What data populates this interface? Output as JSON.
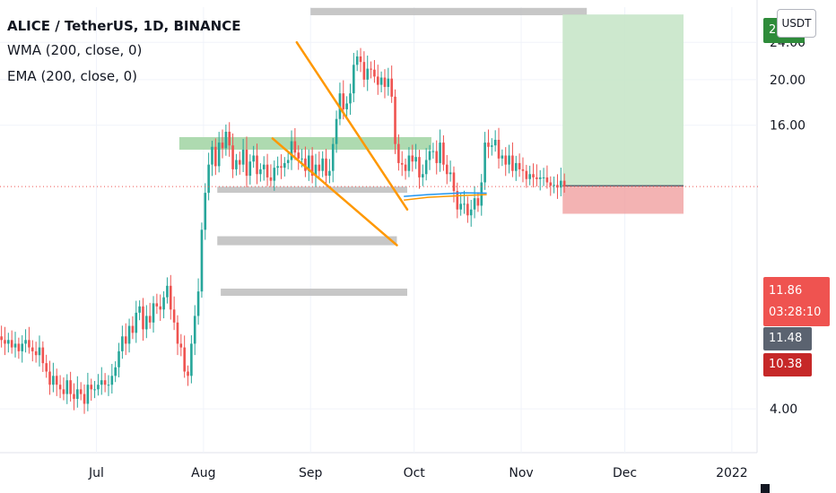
{
  "header": {
    "symbol_line": "ALICE / TetherUS, 1D, BINANCE",
    "indicators": [
      "WMA (200, close, 0)",
      "EMA (200, close, 0)"
    ]
  },
  "price_scale": {
    "unit_button": "USDT",
    "tick_labels": [
      "24.00",
      "20.00",
      "16.00",
      "4.00"
    ],
    "tags": {
      "target_label": "2",
      "last_price": "11.86",
      "countdown": "03:28:10",
      "ma_value": "11.48",
      "stop_value": "10.38"
    }
  },
  "time_scale": {
    "labels": [
      "Jul",
      "Aug",
      "Sep",
      "Oct",
      "Nov",
      "Dec",
      "2022"
    ]
  },
  "colors": {
    "up": "#26a69a",
    "down": "#ef5350",
    "trendline": "#ff9800",
    "resistance_zone": "#a5d6a7",
    "support_zone": "#bdbdbd",
    "wma": "#2196f3",
    "ema": "#ff9800",
    "profit_zone": "#c8e6c9",
    "loss_zone": "#ef9a9a"
  },
  "chart_data": {
    "type": "candlestick",
    "scale": "log",
    "ylim": [
      3.3,
      28.5
    ],
    "x_start": "2021-06-01",
    "days": 172,
    "ticks": [
      {
        "label": "24.00",
        "value": 24
      },
      {
        "label": "20.00",
        "value": 20
      },
      {
        "label": "16.00",
        "value": 16
      },
      {
        "label": "4.00",
        "value": 4
      }
    ],
    "month_ticks": [
      {
        "label": "Jul",
        "date": "2021-07-01"
      },
      {
        "label": "Aug",
        "date": "2021-08-01"
      },
      {
        "label": "Sep",
        "date": "2021-09-01"
      },
      {
        "label": "Oct",
        "date": "2021-10-01"
      },
      {
        "label": "Nov",
        "date": "2021-11-01"
      },
      {
        "label": "Dec",
        "date": "2021-12-01"
      },
      {
        "label": "2022",
        "date": "2022-01-01"
      }
    ],
    "closes": [
      5.8,
      5.7,
      5.6,
      5.5,
      5.6,
      5.4,
      5.5,
      5.3,
      5.5,
      5.6,
      5.4,
      5.3,
      5.2,
      5.4,
      5.0,
      4.8,
      4.5,
      4.7,
      4.5,
      4.4,
      4.3,
      4.6,
      4.3,
      4.2,
      4.4,
      4.3,
      4.1,
      4.5,
      4.4,
      4.4,
      4.5,
      4.6,
      4.5,
      4.5,
      4.7,
      4.9,
      5.3,
      5.7,
      5.5,
      6.0,
      5.8,
      6.4,
      6.6,
      5.9,
      6.3,
      6.1,
      6.7,
      6.6,
      6.5,
      6.9,
      7.3,
      6.5,
      6.1,
      5.5,
      5.4,
      4.8,
      4.7,
      5.5,
      6.3,
      7.1,
      9.6,
      11.5,
      13.2,
      14.4,
      13.1,
      14.7,
      14.3,
      15.5,
      14.5,
      12.9,
      13.5,
      13.2,
      14.2,
      12.5,
      13.4,
      13.8,
      12.6,
      12.9,
      13.2,
      12.4,
      12.2,
      13.0,
      13.1,
      13.0,
      13.3,
      13.5,
      14.8,
      14.0,
      13.6,
      13.6,
      12.8,
      13.8,
      12.5,
      13.2,
      12.8,
      13.6,
      12.5,
      12.8,
      14.6,
      16.5,
      18.7,
      17.3,
      17.8,
      18.7,
      21.5,
      22.4,
      21.8,
      20.0,
      21.1,
      21.0,
      20.3,
      19.5,
      20.2,
      19.3,
      20.1,
      18.4,
      14.6,
      13.3,
      13.2,
      12.8,
      13.8,
      13.4,
      13.7,
      12.4,
      12.6,
      13.5,
      14.1,
      14.1,
      13.3,
      14.7,
      13.2,
      12.6,
      12.7,
      11.6,
      10.6,
      10.9,
      10.9,
      10.3,
      10.6,
      11.2,
      10.8,
      12.1,
      14.7,
      14.4,
      14.5,
      14.9,
      13.6,
      13.8,
      13.2,
      13.8,
      12.8,
      13.3,
      12.9,
      12.8,
      12.3,
      12.6,
      12.4,
      12.3,
      12.4,
      12.4,
      12.1,
      11.9,
      11.95,
      11.8,
      12.2,
      11.86
    ],
    "wma_points": [
      {
        "date": "2021-09-28",
        "value": 11.3
      },
      {
        "date": "2021-10-05",
        "value": 11.4
      },
      {
        "date": "2021-10-15",
        "value": 11.5
      },
      {
        "date": "2021-10-22",
        "value": 11.48
      }
    ],
    "ema_points": [
      {
        "date": "2021-09-28",
        "value": 11.1
      },
      {
        "date": "2021-10-05",
        "value": 11.25
      },
      {
        "date": "2021-10-15",
        "value": 11.35
      },
      {
        "date": "2021-10-22",
        "value": 11.4
      }
    ],
    "trendlines": [
      {
        "from": {
          "date": "2021-08-28",
          "value": 24.0
        },
        "to": {
          "date": "2021-09-29",
          "value": 10.6
        }
      },
      {
        "from": {
          "date": "2021-08-21",
          "value": 15.0
        },
        "to": {
          "date": "2021-09-26",
          "value": 8.9
        }
      }
    ],
    "resistance_zone": {
      "from_date": "2021-07-25",
      "to_date": "2021-10-06",
      "low": 14.2,
      "high": 15.1
    },
    "support_zones": [
      {
        "from_date": "2021-08-05",
        "to_date": "2021-09-29",
        "low": 11.5,
        "high": 11.85
      },
      {
        "from_date": "2021-08-05",
        "to_date": "2021-09-26",
        "low": 8.9,
        "high": 9.3
      },
      {
        "from_date": "2021-08-06",
        "to_date": "2021-09-29",
        "low": 6.95,
        "high": 7.2
      },
      {
        "from_date": "2021-09-01",
        "to_date": "2021-11-20",
        "low": 27.4,
        "high": 28.4
      }
    ],
    "position": {
      "from_date": "2021-11-13",
      "to_date": "2021-12-18",
      "entry": 11.86,
      "target": 27.5,
      "stop": 10.38,
      "entry_line": 11.9
    },
    "current_price_line": 11.86
  }
}
